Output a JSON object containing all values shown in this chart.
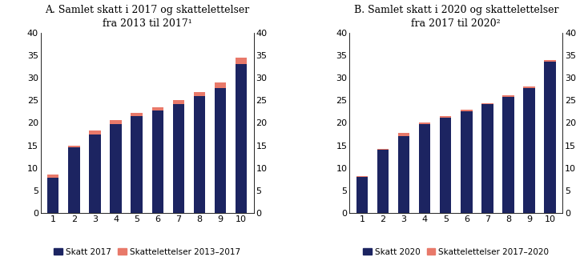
{
  "panel_A": {
    "title": "A. Samlet skatt i 2017 og skattelettelser\nfra 2013 til 2017¹",
    "base_values": [
      7.8,
      14.5,
      17.5,
      19.8,
      21.5,
      22.8,
      24.2,
      26.0,
      27.8,
      33.0
    ],
    "top_values": [
      0.8,
      0.5,
      0.8,
      0.9,
      0.7,
      0.7,
      0.8,
      0.9,
      1.1,
      1.5
    ],
    "legend_base": "Skatt 2017",
    "legend_top": "Skattelettelser 2013–2017"
  },
  "panel_B": {
    "title": "B. Samlet skatt i 2020 og skattelettelser\nfra 2017 til 2020²",
    "base_values": [
      8.0,
      14.0,
      17.0,
      19.8,
      21.2,
      22.5,
      24.1,
      25.8,
      27.8,
      33.5
    ],
    "top_values": [
      0.2,
      0.2,
      0.8,
      0.3,
      0.3,
      0.5,
      0.3,
      0.3,
      0.3,
      0.5
    ],
    "legend_base": "Skatt 2020",
    "legend_top": "Skattelettelser 2017–2020"
  },
  "categories": [
    1,
    2,
    3,
    4,
    5,
    6,
    7,
    8,
    9,
    10
  ],
  "ylim": [
    0,
    40
  ],
  "yticks": [
    0,
    5,
    10,
    15,
    20,
    25,
    30,
    35,
    40
  ],
  "color_base": "#1c2461",
  "color_top": "#e8796a",
  "bar_width": 0.55,
  "background_color": "#ffffff",
  "title_fontsize": 9.0,
  "tick_fontsize": 8,
  "legend_fontsize": 7.5
}
